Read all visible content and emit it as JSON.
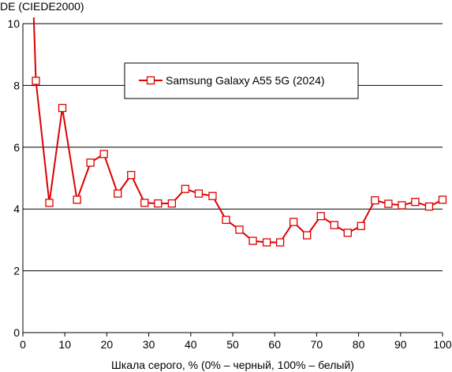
{
  "chart_data": {
    "type": "line",
    "title": "",
    "ylabel": "DE (CIEDE2000)",
    "xlabel": "Шкала серого, % (0% – черный, 100% – белый)",
    "xlim": [
      0,
      100
    ],
    "ylim": [
      0,
      10
    ],
    "x_ticks": [
      0,
      10,
      20,
      30,
      40,
      50,
      60,
      70,
      80,
      90,
      100
    ],
    "y_ticks": [
      0,
      2,
      4,
      6,
      8,
      10
    ],
    "grid": "horizontal",
    "legend_position": "top-center",
    "series": [
      {
        "name": "Samsung Galaxy A55 5G (2024)",
        "color": "#dd0000",
        "marker": "open-square",
        "line_start": {
          "x": 2.6,
          "y": 10.2
        },
        "points": [
          {
            "x": 3.1,
            "y": 8.15
          },
          {
            "x": 6.3,
            "y": 4.2
          },
          {
            "x": 9.4,
            "y": 7.27
          },
          {
            "x": 12.9,
            "y": 4.3
          },
          {
            "x": 16.1,
            "y": 5.5
          },
          {
            "x": 19.3,
            "y": 5.78
          },
          {
            "x": 22.6,
            "y": 4.5
          },
          {
            "x": 25.8,
            "y": 5.1
          },
          {
            "x": 29.0,
            "y": 4.2
          },
          {
            "x": 32.2,
            "y": 4.18
          },
          {
            "x": 35.5,
            "y": 4.18
          },
          {
            "x": 38.7,
            "y": 4.65
          },
          {
            "x": 41.9,
            "y": 4.5
          },
          {
            "x": 45.2,
            "y": 4.42
          },
          {
            "x": 48.4,
            "y": 3.65
          },
          {
            "x": 51.6,
            "y": 3.33
          },
          {
            "x": 54.8,
            "y": 2.97
          },
          {
            "x": 58.1,
            "y": 2.92
          },
          {
            "x": 61.3,
            "y": 2.92
          },
          {
            "x": 64.5,
            "y": 3.58
          },
          {
            "x": 67.7,
            "y": 3.15
          },
          {
            "x": 71.0,
            "y": 3.77
          },
          {
            "x": 74.2,
            "y": 3.48
          },
          {
            "x": 77.4,
            "y": 3.23
          },
          {
            "x": 80.6,
            "y": 3.45
          },
          {
            "x": 83.9,
            "y": 4.28
          },
          {
            "x": 87.1,
            "y": 4.17
          },
          {
            "x": 90.3,
            "y": 4.12
          },
          {
            "x": 93.5,
            "y": 4.23
          },
          {
            "x": 96.8,
            "y": 4.08
          },
          {
            "x": 100.0,
            "y": 4.3
          }
        ]
      }
    ]
  }
}
